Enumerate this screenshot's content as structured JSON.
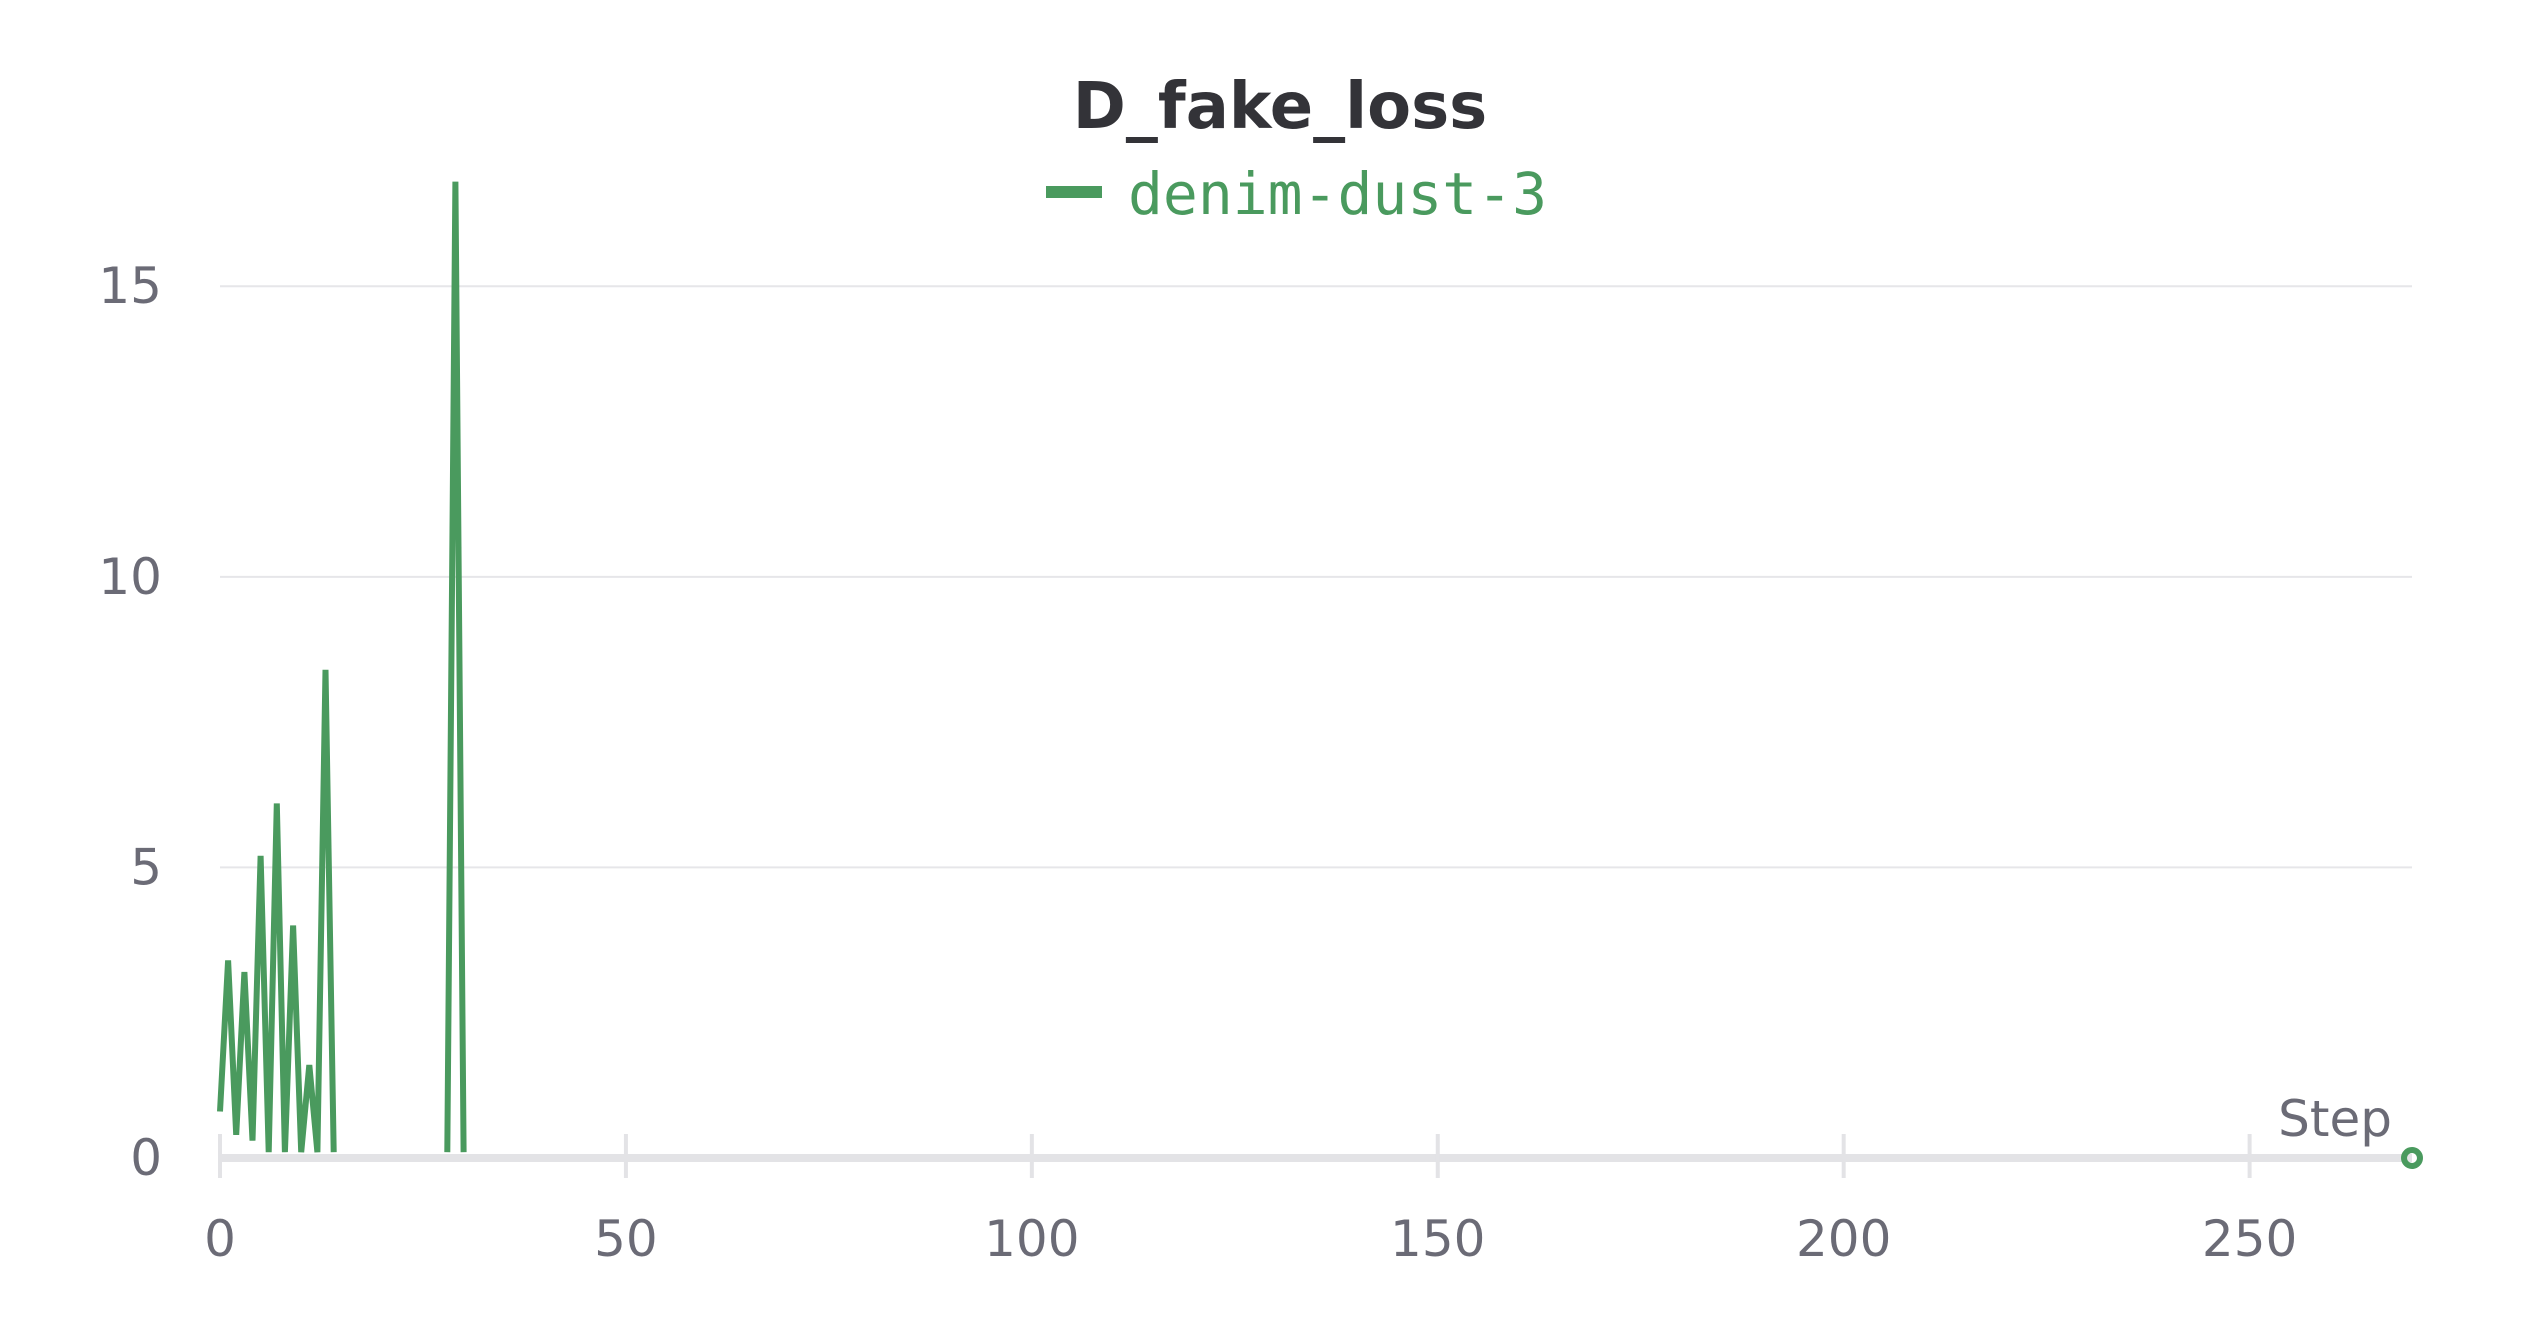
{
  "chart_data": {
    "type": "line",
    "title": "D_fake_loss",
    "xlabel": "Step",
    "ylabel": "",
    "xlim": [
      0,
      270
    ],
    "ylim": [
      0,
      17
    ],
    "x_ticks": [
      0,
      50,
      100,
      150,
      200,
      250
    ],
    "y_ticks": [
      0,
      5,
      10,
      15
    ],
    "grid": true,
    "legend_position": "top-center",
    "series": [
      {
        "name": "denim-dust-3",
        "color": "#4a9a5e",
        "segments": [
          {
            "x": [
              0,
              1,
              2,
              3,
              4,
              5,
              6,
              7,
              8,
              9,
              10,
              11,
              12,
              13,
              14
            ],
            "y": [
              0.8,
              3.4,
              0.4,
              3.2,
              0.3,
              5.2,
              0.1,
              6.1,
              0.1,
              4.0,
              0.1,
              1.6,
              0.1,
              8.4,
              0.1
            ]
          },
          {
            "x": [
              28,
              29,
              30
            ],
            "y": [
              0.1,
              16.8,
              0.1
            ]
          }
        ],
        "last_point": [
          270,
          0
        ]
      }
    ]
  }
}
